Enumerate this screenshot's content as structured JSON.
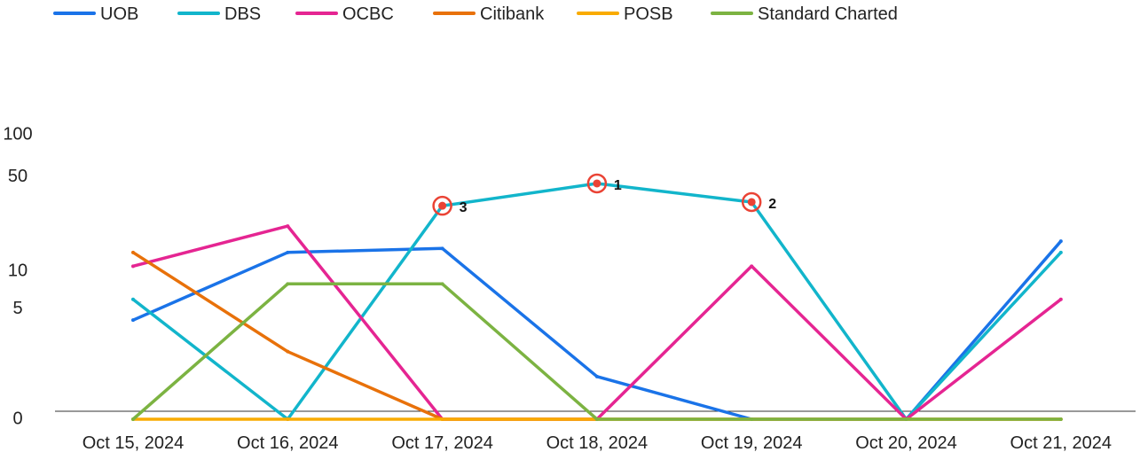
{
  "chart_data": {
    "type": "line",
    "title": "",
    "xlabel": "",
    "ylabel": "",
    "x_scale": "symlog",
    "ylim": [
      0,
      100
    ],
    "y_ticks": [
      0,
      5,
      10,
      50,
      100
    ],
    "y_tick_labels": [
      "0",
      "5",
      "10",
      "50",
      "100"
    ],
    "categories": [
      "Oct 15, 2024",
      "Oct 16, 2024",
      "Oct 17, 2024",
      "Oct 18, 2024",
      "Oct 19, 2024",
      "Oct 20, 2024",
      "Oct 21, 2024"
    ],
    "legend_position": "top-left",
    "grid": false,
    "series": [
      {
        "name": "UOB",
        "color": "#1a73e8",
        "values": [
          4,
          14,
          15,
          1,
          0,
          0,
          17
        ]
      },
      {
        "name": "DBS",
        "color": "#12b5cb",
        "values": [
          6,
          0,
          31,
          45,
          33,
          0,
          14
        ]
      },
      {
        "name": "OCBC",
        "color": "#e52592",
        "values": [
          11,
          22,
          0,
          0,
          11,
          0,
          6
        ]
      },
      {
        "name": "Citibank",
        "color": "#e8710a",
        "values": [
          14,
          2,
          0,
          0,
          0,
          0,
          0
        ]
      },
      {
        "name": "POSB",
        "color": "#f9ab00",
        "values": [
          0,
          0,
          0,
          0,
          0,
          0,
          0
        ]
      },
      {
        "name": "Standard Charted",
        "color": "#7cb342",
        "values": [
          0,
          8,
          8,
          0,
          0,
          0,
          0
        ]
      }
    ],
    "annotations": [
      {
        "series": "DBS",
        "category": "Oct 18, 2024",
        "label": "1"
      },
      {
        "series": "DBS",
        "category": "Oct 19, 2024",
        "label": "2"
      },
      {
        "series": "DBS",
        "category": "Oct 17, 2024",
        "label": "3"
      }
    ],
    "annotation_color": "#ea4335"
  }
}
